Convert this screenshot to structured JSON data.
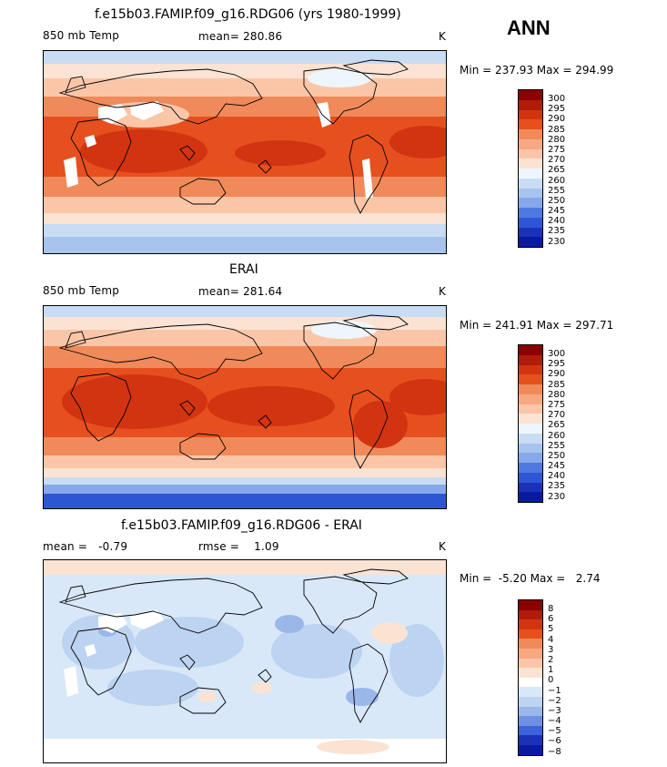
{
  "season": "ANN",
  "units": "K",
  "panels": [
    {
      "title": "f.e15b03.FAMIP.f09_g16.RDG06 (yrs 1980-1999)",
      "variable": "850 mb Temp",
      "mean_label": "mean= 280.86",
      "minmax": "Min = 237.93 Max = 294.99",
      "levels": [
        "300",
        "295",
        "290",
        "285",
        "280",
        "275",
        "270",
        "265",
        "260",
        "255",
        "250",
        "245",
        "240",
        "235",
        "230"
      ]
    },
    {
      "title": "ERAI",
      "variable": "850 mb Temp",
      "mean_label": "mean= 281.64",
      "minmax": "Min = 241.91 Max = 297.71",
      "levels": [
        "300",
        "295",
        "290",
        "285",
        "280",
        "275",
        "270",
        "265",
        "260",
        "255",
        "250",
        "245",
        "240",
        "235",
        "230"
      ]
    },
    {
      "title": "f.e15b03.FAMIP.f09_g16.RDG06 - ERAI",
      "mean_label": "mean =   -0.79",
      "rmse_label": "rmse =    1.09",
      "minmax": "Min =  -5.20 Max =   2.74",
      "levels": [
        "8",
        "6",
        "5",
        "4",
        "3",
        "2",
        "1",
        "0",
        "−1",
        "−2",
        "−3",
        "−4",
        "−5",
        "−6",
        "−8"
      ]
    }
  ],
  "colors": {
    "abs_scale": [
      "#8b0000",
      "#b11c0a",
      "#d23412",
      "#e6501e",
      "#f08a5a",
      "#f7a883",
      "#fbc6a8",
      "#fbe3d3",
      "#eef6fb",
      "#c8dcf4",
      "#a7c3ee",
      "#86a8ea",
      "#4f79e0",
      "#2d56d4",
      "#1a32b8",
      "#0a1aa0"
    ],
    "diff_scale": [
      "#8b0000",
      "#b11c0a",
      "#d23412",
      "#e6501e",
      "#f08a5a",
      "#f7a883",
      "#fbc6a8",
      "#fbe3d3",
      "#ffffff",
      "#d9e8f8",
      "#bcd3f1",
      "#9ab7ea",
      "#6f8fe2",
      "#3c63d9",
      "#1a32b8",
      "#0a1aa0"
    ]
  }
}
